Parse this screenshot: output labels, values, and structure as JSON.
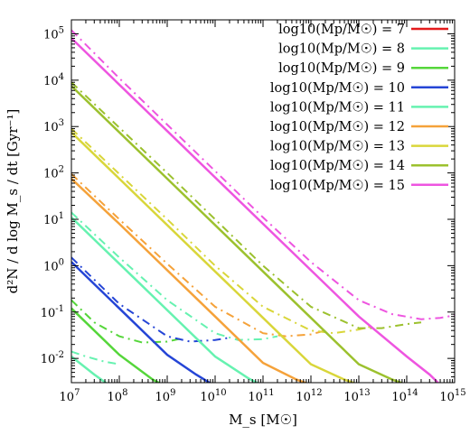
{
  "chart_data": {
    "type": "line",
    "title": "",
    "xlabel": "M_s [M☉]",
    "ylabel": "d²N / d log M_s / dt  [Gyr⁻¹]",
    "xscale": "log",
    "yscale": "log",
    "xlim": [
      10000000,
      1000000000000000
    ],
    "ylim": [
      0.003,
      200000
    ],
    "grid": false,
    "legend_position": "top-right",
    "x_ticks": [
      {
        "value": 10000000,
        "label": "10^7"
      },
      {
        "value": 100000000,
        "label": "10^8"
      },
      {
        "value": 1000000000,
        "label": "10^9"
      },
      {
        "value": 10000000000,
        "label": "10^10"
      },
      {
        "value": 100000000000,
        "label": "10^11"
      },
      {
        "value": 1000000000000,
        "label": "10^12"
      },
      {
        "value": 10000000000000,
        "label": "10^13"
      },
      {
        "value": 100000000000000,
        "label": "10^14"
      },
      {
        "value": 1000000000000000,
        "label": "10^15"
      }
    ],
    "y_ticks": [
      {
        "value": 0.01,
        "label": "10^-2"
      },
      {
        "value": 0.1,
        "label": "10^-1"
      },
      {
        "value": 1,
        "label": "10^0"
      },
      {
        "value": 10,
        "label": "10^1"
      },
      {
        "value": 100,
        "label": "10^2"
      },
      {
        "value": 1000,
        "label": "10^3"
      },
      {
        "value": 10000,
        "label": "10^4"
      },
      {
        "value": 100000,
        "label": "10^5"
      }
    ],
    "series": [
      {
        "name": "log10(Mp/M☉) = 7",
        "color": "#e31a1c",
        "solid": [],
        "dashed": []
      },
      {
        "name": "log10(Mp/M☉) = 8",
        "color": "#66f2b0",
        "solid": [
          [
            10000000,
            0.011
          ],
          [
            30000000,
            0.0045
          ],
          [
            60000000,
            0.0027
          ]
        ],
        "dashed": [
          [
            10000000,
            0.014
          ],
          [
            20000000,
            0.011
          ],
          [
            50000000,
            0.0085
          ],
          [
            100000000,
            0.0075
          ]
        ]
      },
      {
        "name": "log10(Mp/M☉) = 9",
        "color": "#55d63a",
        "solid": [
          [
            10000000,
            0.12
          ],
          [
            100000000,
            0.012
          ],
          [
            500000000,
            0.0035
          ],
          [
            800000000,
            0.0027
          ]
        ],
        "dashed": [
          [
            10000000,
            0.18
          ],
          [
            30000000,
            0.06
          ],
          [
            100000000,
            0.03
          ],
          [
            300000000,
            0.022
          ],
          [
            1000000000,
            0.023
          ],
          [
            2000000000,
            0.027
          ]
        ]
      },
      {
        "name": "log10(Mp/M☉) = 10",
        "color": "#2545d6",
        "solid": [
          [
            10000000,
            1.2
          ],
          [
            100000000,
            0.12
          ],
          [
            1000000000,
            0.012
          ],
          [
            4000000000,
            0.0045
          ],
          [
            9000000000,
            0.0027
          ]
        ],
        "dashed": [
          [
            10000000,
            1.5
          ],
          [
            100000000,
            0.15
          ],
          [
            1000000000,
            0.03
          ],
          [
            3000000000,
            0.023
          ],
          [
            10000000000,
            0.025
          ],
          [
            20000000000,
            0.028
          ]
        ]
      },
      {
        "name": "log10(Mp/M☉) = 11",
        "color": "#66f2b0",
        "solid": [
          [
            10000000,
            11
          ],
          [
            100000000,
            1.1
          ],
          [
            1000000000,
            0.11
          ],
          [
            10000000000,
            0.011
          ],
          [
            50000000000,
            0.0037
          ],
          [
            90000000000,
            0.0027
          ]
        ],
        "dashed": [
          [
            10000000,
            14
          ],
          [
            100000000,
            1.5
          ],
          [
            1000000000,
            0.18
          ],
          [
            10000000000,
            0.035
          ],
          [
            30000000000,
            0.025
          ],
          [
            100000000000,
            0.026
          ],
          [
            200000000000,
            0.03
          ]
        ]
      },
      {
        "name": "log10(Mp/M☉) = 12",
        "color": "#f5a23a",
        "solid": [
          [
            10000000,
            75
          ],
          [
            100000000,
            8
          ],
          [
            1000000000,
            0.8
          ],
          [
            10000000000,
            0.08
          ],
          [
            100000000000,
            0.008
          ],
          [
            500000000000,
            0.0035
          ],
          [
            1000000000000,
            0.0027
          ]
        ],
        "dashed": [
          [
            10000000,
            95
          ],
          [
            100000000,
            10
          ],
          [
            1000000000,
            1.1
          ],
          [
            10000000000,
            0.13
          ],
          [
            100000000000,
            0.035
          ],
          [
            300000000000,
            0.03
          ],
          [
            1000000000000,
            0.033
          ],
          [
            2000000000000,
            0.04
          ]
        ]
      },
      {
        "name": "log10(Mp/M☉) = 13",
        "color": "#d9d63a",
        "solid": [
          [
            10000000,
            750
          ],
          [
            100000000,
            75
          ],
          [
            1000000000,
            7.5
          ],
          [
            10000000000,
            0.75
          ],
          [
            100000000000,
            0.075
          ],
          [
            1000000000000,
            0.0075
          ],
          [
            5000000000000,
            0.0035
          ],
          [
            10000000000000,
            0.0027
          ]
        ],
        "dashed": [
          [
            10000000,
            900
          ],
          [
            100000000,
            95
          ],
          [
            1000000000,
            10
          ],
          [
            10000000000,
            1
          ],
          [
            100000000000,
            0.13
          ],
          [
            1000000000000,
            0.04
          ],
          [
            3000000000000,
            0.035
          ],
          [
            10000000000000,
            0.042
          ],
          [
            20000000000000,
            0.05
          ]
        ]
      },
      {
        "name": "log10(Mp/M☉) = 14",
        "color": "#9cc12e",
        "solid": [
          [
            10000000,
            7500
          ],
          [
            100000000,
            750
          ],
          [
            1000000000,
            75
          ],
          [
            10000000000,
            7.5
          ],
          [
            100000000000,
            0.75
          ],
          [
            1000000000000,
            0.075
          ],
          [
            10000000000000,
            0.0075
          ],
          [
            50000000000000,
            0.0035
          ],
          [
            100000000000000,
            0.0027
          ]
        ],
        "dashed": [
          [
            10000000,
            9000
          ],
          [
            100000000,
            950
          ],
          [
            1000000000,
            100
          ],
          [
            10000000000,
            10
          ],
          [
            100000000000,
            1
          ],
          [
            1000000000000,
            0.13
          ],
          [
            10000000000000,
            0.045
          ],
          [
            30000000000000,
            0.045
          ],
          [
            100000000000000,
            0.055
          ],
          [
            200000000000000,
            0.06
          ]
        ]
      },
      {
        "name": "log10(Mp/M☉) = 15",
        "color": "#ee55e0",
        "solid": [
          [
            10000000,
            80000
          ],
          [
            100000000,
            8000
          ],
          [
            1000000000,
            800
          ],
          [
            10000000000,
            80
          ],
          [
            100000000000,
            8
          ],
          [
            1000000000000,
            0.8
          ],
          [
            10000000000000,
            0.08
          ],
          [
            100000000000000,
            0.011
          ],
          [
            300000000000000,
            0.0045
          ],
          [
            500000000000000,
            0.0027
          ]
        ],
        "dashed": [
          [
            10000000,
            120000
          ],
          [
            100000000,
            11000
          ],
          [
            1000000000,
            1100
          ],
          [
            10000000000,
            110
          ],
          [
            100000000000,
            11
          ],
          [
            1000000000000,
            1.2
          ],
          [
            10000000000000,
            0.18
          ],
          [
            50000000000000,
            0.09
          ],
          [
            200000000000000,
            0.07
          ],
          [
            500000000000000,
            0.075
          ],
          [
            1000000000000000,
            0.085
          ]
        ]
      }
    ]
  }
}
